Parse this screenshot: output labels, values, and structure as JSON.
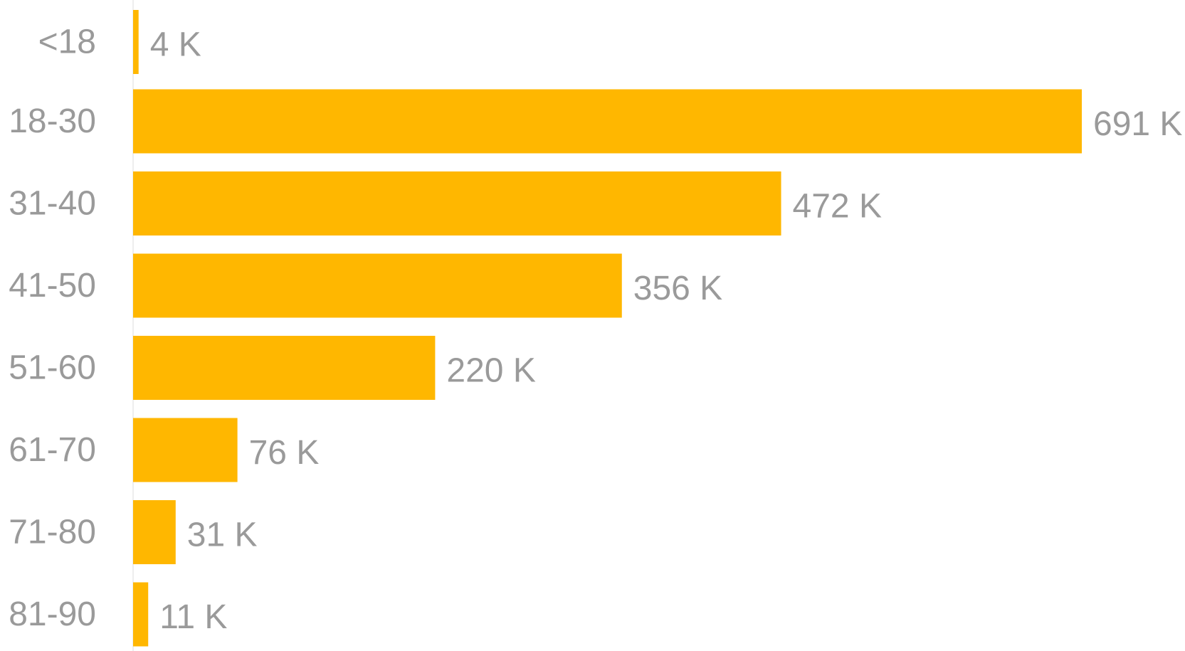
{
  "chart_data": {
    "type": "bar",
    "orientation": "horizontal",
    "categories": [
      "<18",
      "18-30",
      "31-40",
      "41-50",
      "51-60",
      "61-70",
      "71-80",
      "81-90"
    ],
    "values": [
      4,
      691,
      472,
      356,
      220,
      76,
      31,
      11
    ],
    "value_labels": [
      "4 K",
      "691 K",
      "472 K",
      "356 K",
      "220 K",
      "76 K",
      "31 K",
      "11 K"
    ],
    "title": "",
    "xlabel": "",
    "ylabel": "",
    "xlim": [
      0,
      691
    ],
    "grid": false,
    "legend": "none",
    "colors": {
      "bar": "#FFB700",
      "text": "#9a9a9a",
      "axis": "#dcdcdc"
    }
  }
}
